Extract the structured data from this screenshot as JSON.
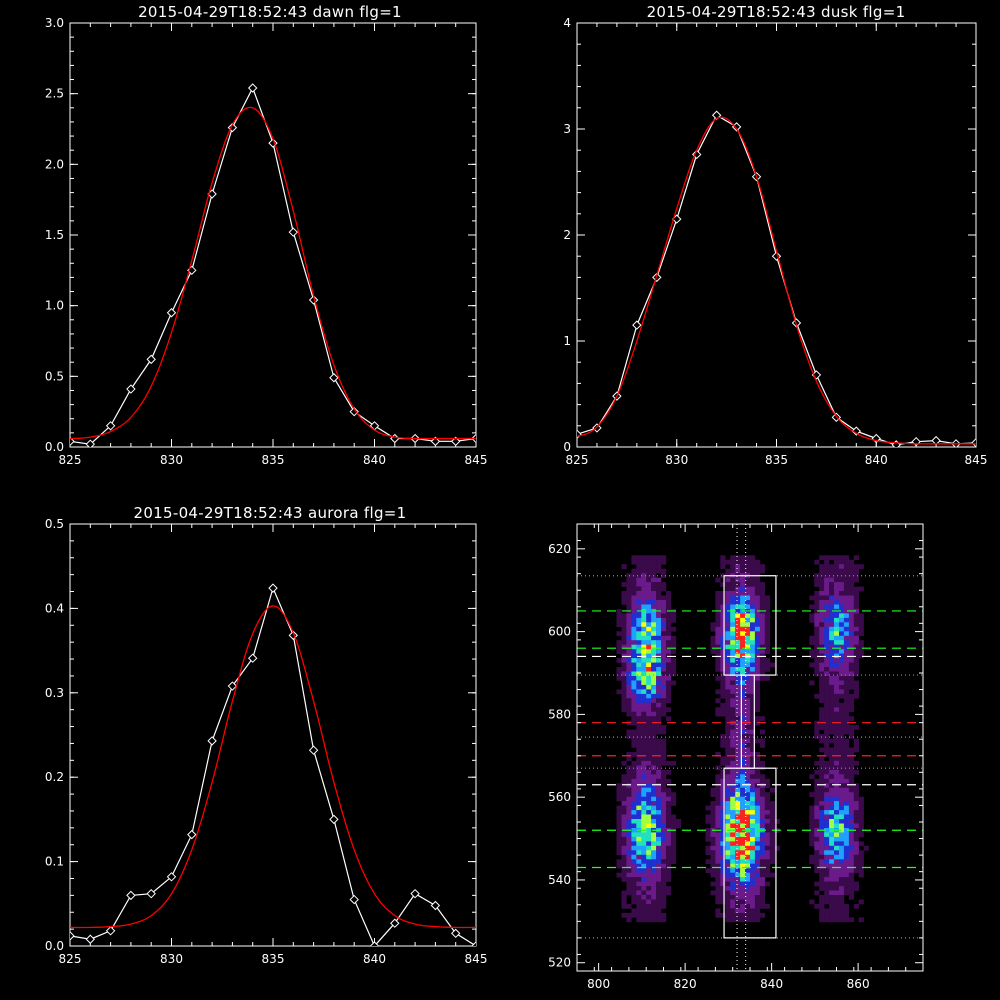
{
  "chart_data": [
    {
      "type": "line",
      "title": "2015-04-29T18:52:43 dawn flg=1",
      "xlim": [
        825,
        845
      ],
      "ylim": [
        0,
        3
      ],
      "xticks": [
        "825",
        "830",
        "835",
        "840",
        "845"
      ],
      "yticks": [
        "0.0",
        "0.5",
        "1.0",
        "1.5",
        "2.0",
        "2.5",
        "3.0"
      ],
      "series": [
        {
          "color": "#ffffff",
          "marker": "diamond",
          "x": [
            825,
            826,
            827,
            828,
            829,
            830,
            831,
            832,
            833,
            834,
            835,
            836,
            837,
            838,
            839,
            840,
            841,
            842,
            843,
            844,
            845
          ],
          "y": [
            0.04,
            0.02,
            0.15,
            0.41,
            0.62,
            0.95,
            1.25,
            1.79,
            2.26,
            2.54,
            2.15,
            1.52,
            1.04,
            0.49,
            0.25,
            0.15,
            0.06,
            0.06,
            0.04,
            0.04,
            0.06
          ]
        },
        {
          "color": "#ff0000",
          "marker": "none",
          "x": [
            825,
            826,
            827,
            828,
            829,
            830,
            831,
            832,
            833,
            834,
            835,
            836,
            837,
            838,
            839,
            840,
            841,
            842,
            843,
            844,
            845
          ],
          "y": [
            0.06,
            0.07,
            0.11,
            0.21,
            0.43,
            0.81,
            1.32,
            1.87,
            2.28,
            2.4,
            2.18,
            1.67,
            1.07,
            0.58,
            0.27,
            0.12,
            0.07,
            0.06,
            0.06,
            0.06,
            0.06
          ]
        }
      ]
    },
    {
      "type": "line",
      "title": "2015-04-29T18:52:43 dusk flg=1",
      "xlim": [
        825,
        845
      ],
      "ylim": [
        0,
        4
      ],
      "xticks": [
        "825",
        "830",
        "835",
        "840",
        "845"
      ],
      "yticks": [
        "0",
        "1",
        "2",
        "3",
        "4"
      ],
      "series": [
        {
          "color": "#ffffff",
          "marker": "diamond",
          "x": [
            825,
            826,
            827,
            828,
            829,
            830,
            831,
            832,
            833,
            834,
            835,
            836,
            837,
            838,
            839,
            840,
            841,
            842,
            843,
            844,
            845
          ],
          "y": [
            0.12,
            0.18,
            0.48,
            1.15,
            1.6,
            2.15,
            2.76,
            3.13,
            3.02,
            2.55,
            1.8,
            1.17,
            0.68,
            0.28,
            0.15,
            0.08,
            0.02,
            0.05,
            0.06,
            0.03,
            0.04
          ]
        },
        {
          "color": "#ff0000",
          "marker": "none",
          "x": [
            825,
            826,
            827,
            828,
            829,
            830,
            831,
            832,
            833,
            834,
            835,
            836,
            837,
            838,
            839,
            840,
            841,
            842,
            843,
            844,
            845
          ],
          "y": [
            0.1,
            0.19,
            0.48,
            1.0,
            1.62,
            2.25,
            2.8,
            3.1,
            3.0,
            2.55,
            1.85,
            1.15,
            0.62,
            0.29,
            0.13,
            0.06,
            0.04,
            0.03,
            0.03,
            0.03,
            0.03
          ]
        }
      ]
    },
    {
      "type": "line",
      "title": "2015-04-29T18:52:43 aurora flg=1",
      "xlim": [
        825,
        845
      ],
      "ylim": [
        0,
        0.5
      ],
      "xticks": [
        "825",
        "830",
        "835",
        "840",
        "845"
      ],
      "yticks": [
        "0.0",
        "0.1",
        "0.2",
        "0.3",
        "0.4",
        "0.5"
      ],
      "series": [
        {
          "color": "#ffffff",
          "marker": "diamond",
          "x": [
            825,
            826,
            827,
            828,
            829,
            830,
            831,
            832,
            833,
            834,
            835,
            836,
            837,
            838,
            839,
            840,
            841,
            842,
            843,
            844,
            845
          ],
          "y": [
            0.012,
            0.008,
            0.018,
            0.06,
            0.062,
            0.082,
            0.132,
            0.243,
            0.308,
            0.341,
            0.424,
            0.368,
            0.232,
            0.15,
            0.055,
            0.0,
            0.027,
            0.062,
            0.048,
            0.015,
            0.0
          ]
        },
        {
          "color": "#ff0000",
          "marker": "none",
          "x": [
            825,
            826,
            827,
            828,
            829,
            830,
            831,
            832,
            833,
            834,
            835,
            836,
            837,
            838,
            839,
            840,
            841,
            842,
            843,
            844,
            845
          ],
          "y": [
            0.022,
            0.022,
            0.023,
            0.026,
            0.036,
            0.062,
            0.114,
            0.194,
            0.29,
            0.37,
            0.403,
            0.371,
            0.29,
            0.194,
            0.114,
            0.062,
            0.036,
            0.026,
            0.023,
            0.022,
            0.022
          ]
        }
      ]
    },
    {
      "type": "heatmap",
      "title": "",
      "xlim": [
        795,
        875
      ],
      "ylim": [
        518,
        626
      ],
      "xticks": [
        "800",
        "820",
        "840",
        "860"
      ],
      "yticks": [
        "520",
        "540",
        "560",
        "580",
        "600",
        "620"
      ],
      "colormap": [
        "#000000",
        "#3a0a4a",
        "#6a1a8a",
        "#2030d0",
        "#20a0ff",
        "#20e0c0",
        "#a0ff40",
        "#ffff00",
        "#ff2020"
      ],
      "blobs": [
        {
          "x": 811,
          "y": 599,
          "sx": 2.5,
          "sy": 6,
          "amp": 0.55
        },
        {
          "x": 811,
          "y": 589,
          "sx": 2.5,
          "sy": 4,
          "amp": 0.5
        },
        {
          "x": 811,
          "y": 552,
          "sx": 2.8,
          "sy": 7,
          "amp": 0.6
        },
        {
          "x": 833,
          "y": 599,
          "sx": 2.5,
          "sy": 6,
          "amp": 0.8
        },
        {
          "x": 833,
          "y": 551,
          "sx": 3,
          "sy": 7,
          "amp": 0.95
        },
        {
          "x": 833,
          "y": 575,
          "sx": 1.5,
          "sy": 12,
          "amp": 0.12
        },
        {
          "x": 855,
          "y": 600,
          "sx": 2.5,
          "sy": 6,
          "amp": 0.38
        },
        {
          "x": 855,
          "y": 552,
          "sx": 2.5,
          "sy": 6,
          "amp": 0.5
        }
      ],
      "boxes": [
        {
          "x0": 829,
          "x1": 841,
          "y0": 589.5,
          "y1": 613.5
        },
        {
          "x0": 829,
          "x1": 841,
          "y0": 526,
          "y1": 567
        },
        {
          "x0": 833,
          "x1": 836,
          "y0": 567,
          "y1": 589.5
        }
      ],
      "dotted_vlines": [
        832,
        834
      ],
      "dotted_hlines": [
        613.5,
        589.5,
        574.5,
        567,
        526
      ],
      "green_dashed_hlines": [
        605,
        596,
        552,
        543
      ],
      "white_dashed_hlines": [
        594,
        563
      ],
      "red_dashed_hlines": [
        578,
        570
      ]
    }
  ]
}
